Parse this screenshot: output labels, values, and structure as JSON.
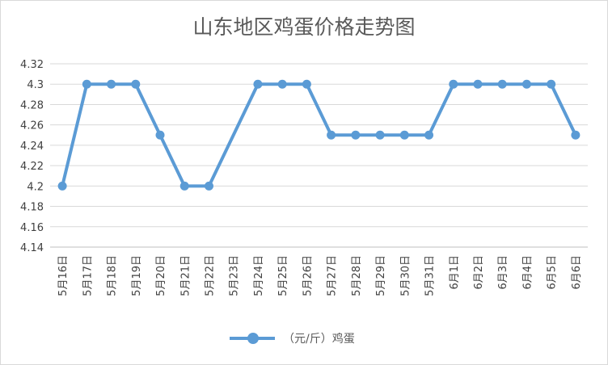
{
  "chart_data": {
    "type": "line",
    "title": "山东地区鸡蛋价格走势图",
    "xlabel": "",
    "ylabel": "",
    "ylim": [
      4.14,
      4.32
    ],
    "yticks": [
      "4.32",
      "4.3",
      "4.28",
      "4.26",
      "4.24",
      "4.22",
      "4.2",
      "4.18",
      "4.16",
      "4.14"
    ],
    "grid": true,
    "legend_position": "bottom",
    "categories": [
      "5月16日",
      "5月17日",
      "5月18日",
      "5月19日",
      "5月20日",
      "5月21日",
      "5月22日",
      "5月23日",
      "5月24日",
      "5月25日",
      "5月26日",
      "5月27日",
      "5月28日",
      "5月29日",
      "5月30日",
      "5月31日",
      "6月1日",
      "6月2日",
      "6月3日",
      "6月4日",
      "6月5日",
      "6月6日"
    ],
    "series": [
      {
        "name": "（元/斤）鸡蛋",
        "color": "#5b9bd5",
        "values": [
          4.2,
          4.3,
          4.3,
          4.3,
          4.25,
          4.2,
          4.2,
          null,
          4.3,
          4.3,
          4.3,
          4.25,
          4.25,
          4.25,
          4.25,
          4.25,
          4.3,
          4.3,
          4.3,
          4.3,
          4.3,
          4.25
        ]
      }
    ]
  }
}
